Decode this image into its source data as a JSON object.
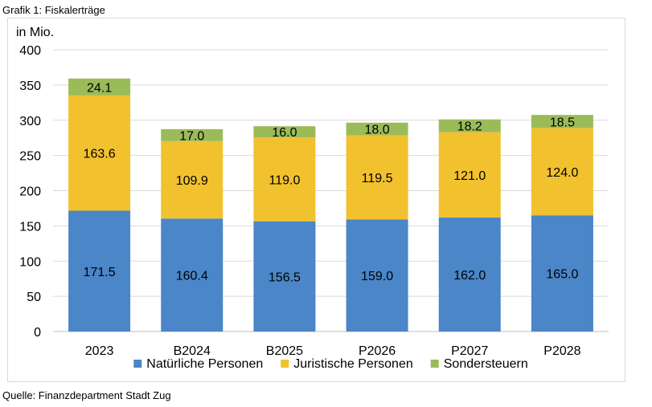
{
  "caption": "Grafik 1: Fiskalerträge",
  "source": "Quelle: Finanzdepartment Stadt Zug",
  "chart_data": {
    "type": "bar",
    "stacked": true,
    "title": "",
    "ylabel": "in Mio.",
    "xlabel": "",
    "ylim": [
      0,
      400
    ],
    "yticks": [
      0,
      50,
      100,
      150,
      200,
      250,
      300,
      350,
      400
    ],
    "grid": true,
    "legend_position": "bottom",
    "categories": [
      "2023",
      "B2024",
      "B2025",
      "P2026",
      "P2027",
      "P2028"
    ],
    "series": [
      {
        "name": "Natürliche Personen",
        "color": "#4a86c8",
        "values": [
          171.5,
          160.4,
          156.5,
          159.0,
          162.0,
          165.0
        ],
        "labels": [
          "171.5",
          "160.4",
          "156.5",
          "159.0",
          "162.0",
          "165.0"
        ]
      },
      {
        "name": "Juristische Personen",
        "color": "#f2c12e",
        "values": [
          163.6,
          109.9,
          119.0,
          119.5,
          121.0,
          124.0
        ],
        "labels": [
          "163.6",
          "109.9",
          "119.0",
          "119.5",
          "121.0",
          "124.0"
        ]
      },
      {
        "name": "Sondersteuern",
        "color": "#9bbb59",
        "values": [
          24.1,
          17.0,
          16.0,
          18.0,
          18.2,
          18.5
        ],
        "labels": [
          "24.1",
          "17.0",
          "16.0",
          "18.0",
          "18.2",
          "18.5"
        ]
      }
    ]
  }
}
